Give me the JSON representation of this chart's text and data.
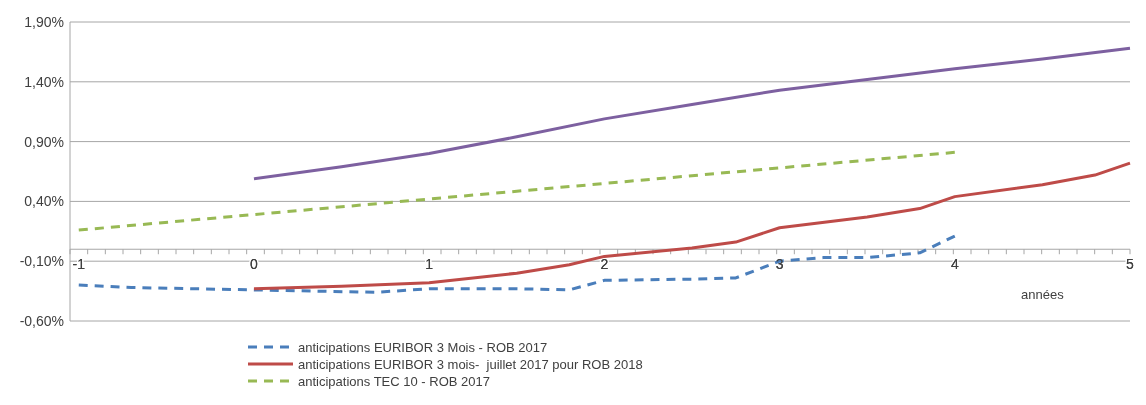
{
  "chart_data": {
    "type": "line",
    "xlabel": "années",
    "xlim": [
      -1.05,
      5
    ],
    "xticks": [
      -1,
      0,
      1,
      2,
      3,
      4,
      5
    ],
    "ylim": [
      -0.6,
      1.9
    ],
    "yticks": [
      {
        "value": -0.6,
        "label": "-0,60%"
      },
      {
        "value": -0.1,
        "label": "-0,10%"
      },
      {
        "value": 0.4,
        "label": "0,40%"
      },
      {
        "value": 0.9,
        "label": "0,90%"
      },
      {
        "value": 1.4,
        "label": "1,40%"
      },
      {
        "value": 1.9,
        "label": "1,90%"
      }
    ],
    "grid": "y",
    "legend": "bottom",
    "series": [
      {
        "name": "anticipations EURIBOR 3 Mois - ROB 2017",
        "color": "#4a7ebb",
        "line_style": "dashed",
        "x": [
          -1,
          -0.7,
          0,
          0.7,
          1,
          1.5,
          1.8,
          2,
          2.5,
          2.75,
          3,
          3.25,
          3.5,
          3.8,
          4
        ],
        "values": [
          -0.3,
          -0.32,
          -0.34,
          -0.36,
          -0.33,
          -0.33,
          -0.34,
          -0.26,
          -0.25,
          -0.24,
          -0.1,
          -0.07,
          -0.07,
          -0.03,
          0.11
        ]
      },
      {
        "name": "anticipations EURIBOR 3 mois-  juillet 2017 pour ROB 2018",
        "color": "#be4b48",
        "line_style": "solid",
        "x": [
          0,
          0.5,
          1,
          1.5,
          1.8,
          2,
          2.5,
          2.75,
          3,
          3.5,
          3.8,
          4,
          4.5,
          4.8,
          5
        ],
        "values": [
          -0.33,
          -0.31,
          -0.28,
          -0.2,
          -0.13,
          -0.06,
          0.01,
          0.06,
          0.18,
          0.27,
          0.34,
          0.44,
          0.54,
          0.62,
          0.72
        ]
      },
      {
        "name": "anticipations TEC 10 - ROB 2017",
        "color": "#98b954",
        "line_style": "dashed",
        "x": [
          -1,
          0,
          1,
          2,
          3,
          4
        ],
        "values": [
          0.16,
          0.29,
          0.42,
          0.55,
          0.68,
          0.81
        ]
      },
      {
        "color": "#7d60a0",
        "line_style": "solid",
        "x": [
          0,
          0.5,
          1,
          1.5,
          2,
          2.5,
          3,
          3.5,
          4,
          4.5,
          5
        ],
        "values": [
          0.59,
          0.69,
          0.8,
          0.94,
          1.09,
          1.21,
          1.33,
          1.42,
          1.51,
          1.59,
          1.68
        ]
      }
    ]
  }
}
